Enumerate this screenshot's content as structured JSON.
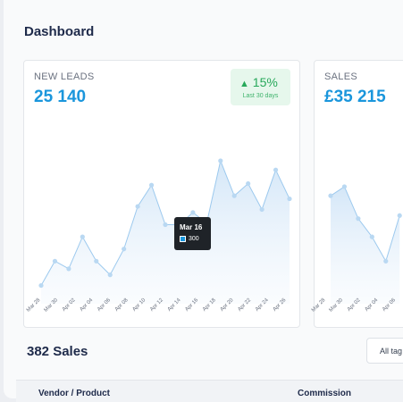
{
  "header": {
    "title": "Dashboard"
  },
  "cards": [
    {
      "label": "NEW LEADS",
      "value": "25 140",
      "badge": {
        "change": "15%",
        "period": "Last 30 days"
      },
      "chart": {
        "type": "area",
        "color": "#9cc9ee",
        "x_labels": [
          "Mar 28",
          "Mar 30",
          "Apr 02",
          "Apr 04",
          "Apr 06",
          "Apr 08",
          "Apr 10",
          "Apr 12",
          "Apr 14",
          "Apr 16",
          "Apr 18",
          "Apr 20",
          "Apr 22",
          "Apr 24",
          "Apr 26"
        ],
        "values": [
          60,
          140,
          115,
          220,
          140,
          95,
          180,
          320,
          390,
          260,
          260,
          300,
          265,
          470,
          355,
          395,
          310,
          440,
          345
        ],
        "tooltip": {
          "date": "Mar 16",
          "value": "300"
        }
      }
    },
    {
      "label": "SALES",
      "value": "£35 215",
      "chart": {
        "type": "area",
        "color": "#9cc9ee",
        "x_labels": [
          "Mar 28",
          "Mar 30",
          "Apr 02",
          "Apr 04",
          "Apr 06"
        ],
        "values": [
          355,
          385,
          280,
          220,
          140,
          290
        ]
      }
    }
  ],
  "sales": {
    "title": "382 Sales",
    "filter": "All tag",
    "table": {
      "columns": [
        "Vendor / Product",
        "Commission"
      ]
    }
  }
}
